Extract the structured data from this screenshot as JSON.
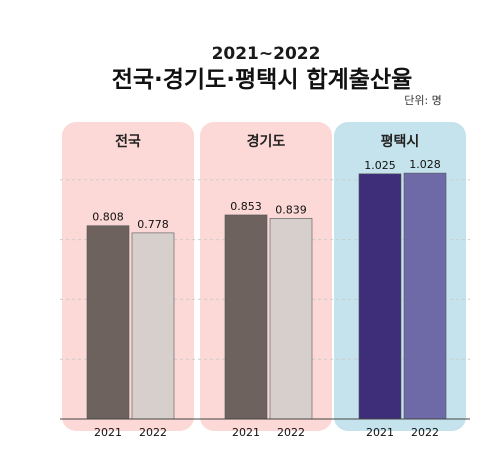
{
  "chart_data": {
    "type": "bar",
    "subtitle": "2021~2022",
    "title": "전국·경기도·평택시 합계출산율",
    "unit": "단위: 명",
    "categories": [
      "전국",
      "경기도",
      "평택시"
    ],
    "years": [
      "2021",
      "2022"
    ],
    "values": [
      [
        0.808,
        0.778
      ],
      [
        0.853,
        0.839
      ],
      [
        1.025,
        1.028
      ]
    ],
    "value_labels": [
      [
        "0.808",
        "0.778"
      ],
      [
        "0.853",
        "0.839"
      ],
      [
        "1.025",
        "1.028"
      ]
    ],
    "ylim": [
      0,
      1.25
    ],
    "grid": true,
    "colors": {
      "panel_national": "#fcd9d6",
      "panel_gyeonggi": "#fcd9d6",
      "panel_pyeongtaek": "#c4e3ec",
      "bar_2021_gray": "#6e625f",
      "bar_2022_gray": "#d6cfcc",
      "bar_2021_purple": "#3e2d78",
      "bar_2022_purple": "#6e6aa8",
      "grid": "#cccccc"
    }
  }
}
